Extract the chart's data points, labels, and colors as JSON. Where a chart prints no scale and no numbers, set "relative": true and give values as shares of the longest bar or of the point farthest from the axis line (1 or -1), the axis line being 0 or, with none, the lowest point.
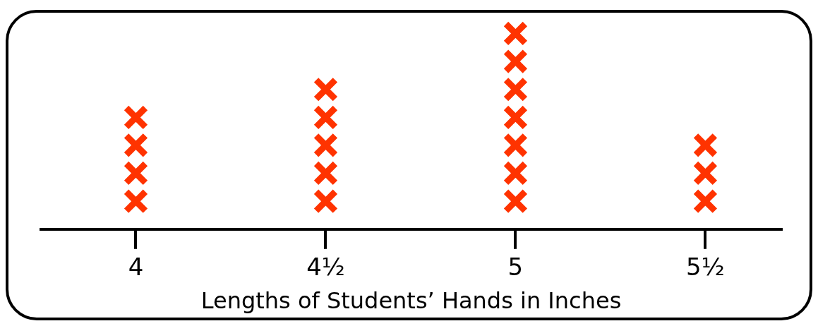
{
  "chart_data": {
    "type": "scatter",
    "xlabel": "Lengths of Students’ Hands in Inches",
    "x": [
      4,
      4,
      4,
      4,
      4.5,
      4.5,
      4.5,
      4.5,
      4.5,
      5,
      5,
      5,
      5,
      5,
      5,
      5,
      5.5,
      5.5,
      5.5
    ],
    "values": [
      0.143,
      0.286,
      0.429,
      0.571,
      0.143,
      0.286,
      0.429,
      0.571,
      0.714,
      0.143,
      0.286,
      0.429,
      0.571,
      0.714,
      0.857,
      1,
      0.143,
      0.286,
      0.429
    ],
    "relative": true,
    "color": "#ff3300",
    "marker": "cross",
    "grid": false,
    "legend": false,
    "tick_labels": "x",
    "xlim": [
      3.75,
      5.7
    ],
    "xticks": [
      4,
      {
        "value": 4.5,
        "label": "4½"
      },
      5,
      {
        "value": 5.5,
        "label": "5½"
      }
    ]
  }
}
